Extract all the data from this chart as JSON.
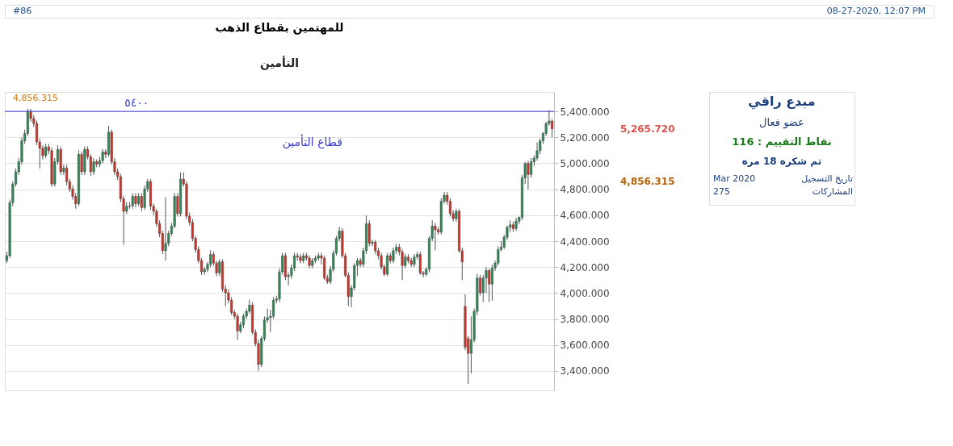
{
  "chart_data": {
    "type": "candlestick",
    "title": "للمهتمين بقطاع الذهب",
    "subtitle": "التأمين",
    "categories": [
      null,
      null,
      null,
      null,
      null,
      null,
      null,
      null,
      null,
      null,
      null,
      null,
      null,
      null,
      null,
      null,
      null,
      null,
      null,
      null,
      null,
      null,
      null,
      null,
      null,
      null,
      null,
      null,
      null,
      null,
      null,
      null,
      null,
      null,
      null,
      null,
      null,
      null,
      null,
      null,
      null,
      null,
      null,
      null,
      null,
      null,
      null,
      null,
      null,
      null,
      null,
      null,
      null,
      null,
      null,
      null,
      null,
      null,
      null,
      null,
      null,
      null,
      null,
      null,
      null,
      null,
      null,
      null,
      null,
      null,
      null,
      null,
      null,
      null,
      null,
      null,
      null,
      null,
      null,
      null,
      null,
      null,
      null,
      null,
      null,
      null,
      null,
      null,
      null,
      null,
      null,
      null,
      null,
      null,
      null,
      null,
      null,
      null,
      null,
      null,
      null,
      null,
      null,
      null,
      null,
      null,
      null,
      null,
      null,
      null,
      null,
      null,
      null,
      null,
      null,
      null,
      null,
      null,
      null,
      null,
      null,
      null,
      null,
      null,
      null,
      null,
      null,
      null,
      null,
      null,
      null,
      null,
      null,
      null,
      null,
      null,
      null,
      null,
      null,
      null,
      null,
      null,
      null,
      null,
      null,
      null,
      null,
      null,
      null,
      null,
      null,
      null,
      null,
      null,
      null,
      null,
      null,
      null,
      null,
      null,
      null,
      null,
      null,
      null,
      null,
      null,
      null,
      null,
      null,
      null,
      null,
      null,
      null,
      null,
      null,
      null,
      null,
      null,
      null,
      null,
      null,
      null,
      null
    ],
    "ohlc": [
      [
        4250,
        4320,
        4230,
        4288
      ],
      [
        4288,
        4720,
        4270,
        4697
      ],
      [
        4697,
        4860,
        4670,
        4840
      ],
      [
        4840,
        4960,
        4820,
        4935
      ],
      [
        4935,
        5040,
        4910,
        5012
      ],
      [
        5012,
        5200,
        4990,
        5173
      ],
      [
        5173,
        5260,
        5150,
        5230
      ],
      [
        5230,
        5420,
        5210,
        5400
      ],
      [
        5400,
        5420,
        5320,
        5345
      ],
      [
        5345,
        5370,
        5280,
        5307
      ],
      [
        5307,
        5330,
        5140,
        5164
      ],
      [
        5164,
        5190,
        4960,
        5116
      ],
      [
        5116,
        5140,
        5030,
        5059
      ],
      [
        5059,
        5150,
        5040,
        5126
      ],
      [
        5126,
        5150,
        5070,
        5097
      ],
      [
        5097,
        5120,
        4820,
        4840
      ],
      [
        4840,
        5040,
        4820,
        5012
      ],
      [
        5012,
        5140,
        4990,
        5107
      ],
      [
        5107,
        5130,
        4910,
        4935
      ],
      [
        4935,
        4990,
        4910,
        4964
      ],
      [
        4964,
        4990,
        4830,
        4859
      ],
      [
        4859,
        4880,
        4780,
        4802
      ],
      [
        4802,
        4830,
        4720,
        4745
      ],
      [
        4745,
        4770,
        4650,
        4688
      ],
      [
        4688,
        5100,
        4670,
        5069
      ],
      [
        5069,
        5090,
        4910,
        4935
      ],
      [
        4935,
        5130,
        4910,
        5107
      ],
      [
        5107,
        5130,
        5030,
        5050
      ],
      [
        5050,
        5070,
        4900,
        4935
      ],
      [
        4935,
        5040,
        4910,
        5012
      ],
      [
        5012,
        5030,
        4970,
        4993
      ],
      [
        4993,
        5050,
        4970,
        5021
      ],
      [
        5021,
        5110,
        5000,
        5088
      ],
      [
        5088,
        5110,
        5040,
        5069
      ],
      [
        5069,
        5290,
        5050,
        5240
      ],
      [
        5240,
        5260,
        4990,
        5012
      ],
      [
        5012,
        5040,
        4910,
        4935
      ],
      [
        4935,
        4960,
        4870,
        4897
      ],
      [
        4897,
        4920,
        4700,
        4726
      ],
      [
        4726,
        4750,
        4370,
        4630
      ],
      [
        4630,
        4700,
        4610,
        4669
      ],
      [
        4669,
        4700,
        4650,
        4672
      ],
      [
        4672,
        4770,
        4650,
        4745
      ],
      [
        4745,
        4770,
        4660,
        4688
      ],
      [
        4688,
        4770,
        4670,
        4745
      ],
      [
        4745,
        4770,
        4630,
        4659
      ],
      [
        4659,
        4830,
        4640,
        4802
      ],
      [
        4802,
        4880,
        4780,
        4859
      ],
      [
        4859,
        4880,
        4640,
        4669
      ],
      [
        4669,
        4690,
        4600,
        4630
      ],
      [
        4630,
        4650,
        4510,
        4535
      ],
      [
        4535,
        4560,
        4430,
        4459
      ],
      [
        4459,
        4480,
        4300,
        4326
      ],
      [
        4326,
        4740,
        4250,
        4383
      ],
      [
        4383,
        4480,
        4360,
        4459
      ],
      [
        4459,
        4540,
        4440,
        4516
      ],
      [
        4516,
        4770,
        4500,
        4745
      ],
      [
        4745,
        4770,
        4590,
        4612
      ],
      [
        4612,
        4930,
        4590,
        4878
      ],
      [
        4878,
        4930,
        4820,
        4840
      ],
      [
        4840,
        4860,
        4570,
        4592
      ],
      [
        4592,
        4620,
        4520,
        4545
      ],
      [
        4545,
        4570,
        4400,
        4421
      ],
      [
        4421,
        4440,
        4310,
        4335
      ],
      [
        4335,
        4360,
        4230,
        4250
      ],
      [
        4250,
        4270,
        4140,
        4164
      ],
      [
        4164,
        4200,
        4140,
        4183
      ],
      [
        4183,
        4240,
        4160,
        4221
      ],
      [
        4221,
        4330,
        4200,
        4297
      ],
      [
        4297,
        4320,
        4210,
        4231
      ],
      [
        4231,
        4250,
        4130,
        4155
      ],
      [
        4155,
        4260,
        4130,
        4240
      ],
      [
        4240,
        4260,
        4010,
        4031
      ],
      [
        4031,
        4060,
        3900,
        4002
      ],
      [
        4002,
        4030,
        3920,
        3945
      ],
      [
        3945,
        3970,
        3830,
        3850
      ],
      [
        3850,
        3870,
        3800,
        3821
      ],
      [
        3821,
        3840,
        3640,
        3707
      ],
      [
        3707,
        3780,
        3690,
        3755
      ],
      [
        3755,
        3840,
        3730,
        3821
      ],
      [
        3821,
        3880,
        3800,
        3859
      ],
      [
        3859,
        3950,
        3840,
        3907
      ],
      [
        3907,
        3930,
        3680,
        3697
      ],
      [
        3697,
        3720,
        3590,
        3611
      ],
      [
        3611,
        3640,
        3400,
        3449
      ],
      [
        3449,
        3670,
        3430,
        3650
      ],
      [
        3650,
        3820,
        3630,
        3792
      ],
      [
        3792,
        3880,
        3770,
        3811
      ],
      [
        3811,
        3870,
        3700,
        3821
      ],
      [
        3821,
        3970,
        3800,
        3945
      ],
      [
        3945,
        3980,
        3920,
        3954
      ],
      [
        3954,
        4190,
        3930,
        4164
      ],
      [
        4164,
        4310,
        4140,
        4288
      ],
      [
        4288,
        4310,
        4100,
        4126
      ],
      [
        4126,
        4160,
        4060,
        4136
      ],
      [
        4136,
        4220,
        4110,
        4193
      ],
      [
        4193,
        4310,
        4170,
        4288
      ],
      [
        4288,
        4310,
        4250,
        4278
      ],
      [
        4278,
        4300,
        4230,
        4250
      ],
      [
        4250,
        4310,
        4230,
        4288
      ],
      [
        4288,
        4310,
        4250,
        4269
      ],
      [
        4269,
        4290,
        4190,
        4212
      ],
      [
        4212,
        4270,
        4190,
        4250
      ],
      [
        4250,
        4290,
        4230,
        4269
      ],
      [
        4269,
        4310,
        4250,
        4288
      ],
      [
        4288,
        4310,
        4220,
        4269
      ],
      [
        4269,
        4290,
        4100,
        4116
      ],
      [
        4116,
        4140,
        4070,
        4088
      ],
      [
        4088,
        4210,
        4070,
        4183
      ],
      [
        4183,
        4330,
        4160,
        4307
      ],
      [
        4307,
        4440,
        4290,
        4421
      ],
      [
        4421,
        4510,
        4400,
        4478
      ],
      [
        4478,
        4500,
        4270,
        4288
      ],
      [
        4288,
        4310,
        4120,
        4136
      ],
      [
        4136,
        4160,
        3900,
        3973
      ],
      [
        3973,
        4060,
        3890,
        4040
      ],
      [
        4040,
        4230,
        4020,
        4212
      ],
      [
        4212,
        4270,
        4130,
        4250
      ],
      [
        4250,
        4270,
        4200,
        4221
      ],
      [
        4221,
        4350,
        4200,
        4326
      ],
      [
        4326,
        4600,
        4300,
        4535
      ],
      [
        4535,
        4560,
        4360,
        4383
      ],
      [
        4383,
        4410,
        4360,
        4392
      ],
      [
        4392,
        4410,
        4300,
        4326
      ],
      [
        4326,
        4350,
        4260,
        4288
      ],
      [
        4288,
        4310,
        4180,
        4202
      ],
      [
        4202,
        4220,
        4130,
        4145
      ],
      [
        4145,
        4310,
        4130,
        4288
      ],
      [
        4288,
        4310,
        4230,
        4250
      ],
      [
        4250,
        4350,
        4230,
        4326
      ],
      [
        4326,
        4380,
        4300,
        4354
      ],
      [
        4354,
        4380,
        4290,
        4316
      ],
      [
        4316,
        4340,
        4100,
        4212
      ],
      [
        4212,
        4300,
        4190,
        4278
      ],
      [
        4278,
        4300,
        4230,
        4250
      ],
      [
        4250,
        4270,
        4200,
        4221
      ],
      [
        4221,
        4300,
        4200,
        4278
      ],
      [
        4278,
        4320,
        4260,
        4297
      ],
      [
        4297,
        4320,
        4140,
        4155
      ],
      [
        4155,
        4170,
        4120,
        4145
      ],
      [
        4145,
        4200,
        4130,
        4183
      ],
      [
        4183,
        4440,
        4160,
        4421
      ],
      [
        4421,
        4560,
        4400,
        4516
      ],
      [
        4516,
        4540,
        4330,
        4488
      ],
      [
        4488,
        4510,
        4450,
        4469
      ],
      [
        4469,
        4730,
        4450,
        4707
      ],
      [
        4707,
        4780,
        4690,
        4754
      ],
      [
        4754,
        4780,
        4680,
        4707
      ],
      [
        4707,
        4730,
        4590,
        4612
      ],
      [
        4612,
        4640,
        4550,
        4573
      ],
      [
        4573,
        4650,
        4550,
        4630
      ],
      [
        4630,
        4650,
        4310,
        4326
      ],
      [
        4326,
        4350,
        4100,
        4240
      ],
      [
        3897,
        3990,
        3560,
        3583
      ],
      [
        3650,
        3670,
        3300,
        3535
      ],
      [
        3535,
        3820,
        3380,
        3640
      ],
      [
        3640,
        3880,
        3620,
        3859
      ],
      [
        3859,
        4150,
        3830,
        4116
      ],
      [
        4116,
        4140,
        3980,
        4002
      ],
      [
        4002,
        4140,
        3930,
        4116
      ],
      [
        4116,
        4200,
        4000,
        4173
      ],
      [
        4173,
        4190,
        3930,
        4069
      ],
      [
        4069,
        4220,
        3940,
        4193
      ],
      [
        4193,
        4250,
        4170,
        4231
      ],
      [
        4231,
        4360,
        4210,
        4335
      ],
      [
        4335,
        4400,
        4320,
        4354
      ],
      [
        4354,
        4450,
        4340,
        4430
      ],
      [
        4430,
        4520,
        4410,
        4507
      ],
      [
        4507,
        4560,
        4470,
        4526
      ],
      [
        4526,
        4550,
        4470,
        4497
      ],
      [
        4497,
        4580,
        4480,
        4554
      ],
      [
        4554,
        4590,
        4530,
        4583
      ],
      [
        4583,
        4910,
        4560,
        4888
      ],
      [
        4888,
        5010,
        4840,
        4999
      ],
      [
        4999,
        5020,
        4800,
        4914
      ],
      [
        4914,
        5040,
        4890,
        5012
      ],
      [
        5012,
        5060,
        4980,
        5040
      ],
      [
        5040,
        5160,
        5020,
        5097
      ],
      [
        5097,
        5190,
        5070,
        5173
      ],
      [
        5173,
        5240,
        5150,
        5230
      ],
      [
        5230,
        5320,
        5210,
        5307
      ],
      [
        5307,
        5410,
        5290,
        5326
      ],
      [
        5326,
        5340,
        5200,
        5265.72
      ]
    ],
    "colors": [
      "#2f8a58",
      "#2f8a58",
      "#2f8a58",
      "#2f8a58",
      "#2f8a58",
      "#2f8a58",
      "#2f8a58",
      "#2f8a58",
      "#d1342a",
      "#d1342a",
      "#d1342a",
      "#d1342a",
      "#d1342a",
      "#2f8a58",
      "#d1342a",
      "#d1342a",
      "#2f8a58",
      "#2f8a58",
      "#d1342a",
      "#2f8a58",
      "#d1342a",
      "#d1342a",
      "#d1342a",
      "#d1342a",
      "#2f8a58",
      "#d1342a",
      "#2f8a58",
      "#d1342a",
      "#d1342a",
      "#2f8a58",
      "#d1342a",
      "#2f8a58",
      "#2f8a58",
      "#d1342a",
      "#2f8a58",
      "#d1342a",
      "#d1342a",
      "#d1342a",
      "#d1342a",
      "#d1342a",
      "#2f8a58",
      "#2f8a58",
      "#2f8a58",
      "#d1342a",
      "#2f8a58",
      "#d1342a",
      "#2f8a58",
      "#2f8a58",
      "#d1342a",
      "#d1342a",
      "#d1342a",
      "#d1342a",
      "#d1342a",
      "#2f8a58",
      "#2f8a58",
      "#2f8a58",
      "#2f8a58",
      "#d1342a",
      "#2f8a58",
      "#d1342a",
      "#d1342a",
      "#d1342a",
      "#d1342a",
      "#d1342a",
      "#d1342a",
      "#d1342a",
      "#2f8a58",
      "#2f8a58",
      "#2f8a58",
      "#d1342a",
      "#d1342a",
      "#2f8a58",
      "#d1342a",
      "#d1342a",
      "#d1342a",
      "#d1342a",
      "#d1342a",
      "#d1342a",
      "#2f8a58",
      "#2f8a58",
      "#2f8a58",
      "#2f8a58",
      "#d1342a",
      "#d1342a",
      "#d1342a",
      "#2f8a58",
      "#2f8a58",
      "#2f8a58",
      "#2f8a58",
      "#2f8a58",
      "#2f8a58",
      "#2f8a58",
      "#2f8a58",
      "#d1342a",
      "#2f8a58",
      "#2f8a58",
      "#2f8a58",
      "#d1342a",
      "#d1342a",
      "#2f8a58",
      "#d1342a",
      "#d1342a",
      "#2f8a58",
      "#2f8a58",
      "#2f8a58",
      "#d1342a",
      "#d1342a",
      "#d1342a",
      "#2f8a58",
      "#2f8a58",
      "#2f8a58",
      "#2f8a58",
      "#d1342a",
      "#d1342a",
      "#d1342a",
      "#2f8a58",
      "#2f8a58",
      "#2f8a58",
      "#d1342a",
      "#2f8a58",
      "#2f8a58",
      "#d1342a",
      "#2f8a58",
      "#d1342a",
      "#d1342a",
      "#d1342a",
      "#d1342a",
      "#2f8a58",
      "#d1342a",
      "#2f8a58",
      "#2f8a58",
      "#d1342a",
      "#d1342a",
      "#2f8a58",
      "#d1342a",
      "#d1342a",
      "#2f8a58",
      "#2f8a58",
      "#d1342a",
      "#d1342a",
      "#2f8a58",
      "#2f8a58",
      "#2f8a58",
      "#d1342a",
      "#d1342a",
      "#2f8a58",
      "#2f8a58",
      "#d1342a",
      "#d1342a",
      "#d1342a",
      "#2f8a58",
      "#d1342a",
      "#d1342a",
      "#d1342a",
      "#d1342a",
      "#2f8a58",
      "#2f8a58",
      "#2f8a58",
      "#d1342a",
      "#2f8a58",
      "#2f8a58",
      "#d1342a",
      "#2f8a58",
      "#2f8a58",
      "#2f8a58",
      "#2f8a58",
      "#2f8a58",
      "#2f8a58",
      "#2f8a58",
      "#d1342a",
      "#2f8a58",
      "#2f8a58",
      "#2f8a58",
      "#2f8a58",
      "#d1342a",
      "#2f8a58",
      "#2f8a58",
      "#2f8a58",
      "#2f8a58",
      "#2f8a58",
      "#2f8a58",
      "#2f8a58",
      "#d1342a"
    ],
    "ylim": [
      3250,
      5550
    ],
    "yticks": [
      {
        "value": 3400,
        "label": "3,400.000"
      },
      {
        "value": 3600,
        "label": "3,600.000"
      },
      {
        "value": 3800,
        "label": "3,800.000"
      },
      {
        "value": 4000,
        "label": "4,000.000"
      },
      {
        "value": 4200,
        "label": "4,200.000"
      },
      {
        "value": 4400,
        "label": "4,400.000"
      },
      {
        "value": 4600,
        "label": "4,600.000"
      },
      {
        "value": 4800,
        "label": "4,800.000"
      },
      {
        "value": 5000,
        "label": "5,000.000"
      },
      {
        "value": 5200,
        "label": "5,200.000"
      },
      {
        "value": 5400,
        "label": "5,400.000"
      }
    ],
    "grid": "y",
    "tick_labels": "y",
    "ref_lines": [
      {
        "axis": "y",
        "value": 5400,
        "label": "٥٤٠٠",
        "color": "#3a3ad0"
      }
    ],
    "annotations": [
      "4,856.315",
      "قطاع التأمين",
      "#86",
      "08-27-2020, 12:07 PM",
      "مبدع راقي",
      "عضو فعال",
      "نقاط التقييم : 116",
      "تم شكره 18 مره",
      "تاريخ التسجيل",
      "Mar 2020",
      "المشاركات",
      "275",
      "5,265.720",
      "4,856.315"
    ]
  }
}
